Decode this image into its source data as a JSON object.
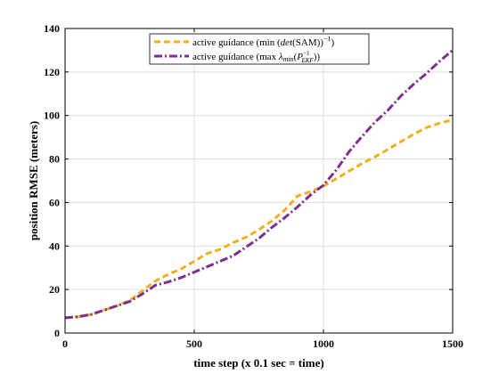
{
  "chart_data": {
    "type": "line",
    "title": "",
    "xlabel": "time step (x 0.1 sec = time)",
    "ylabel": "position RMSE (meters)",
    "xlim": [
      0,
      1500
    ],
    "ylim": [
      0,
      140
    ],
    "xticks": [
      0,
      500,
      1000,
      1500
    ],
    "yticks": [
      0,
      20,
      40,
      60,
      80,
      100,
      120,
      140
    ],
    "grid": true,
    "legend_position": "top-center",
    "series": [
      {
        "name": "active guidance (min (det(SAM))⁻¹)",
        "color": "#EDB120",
        "dash": "dashed",
        "x": [
          0,
          50,
          100,
          150,
          200,
          250,
          300,
          350,
          400,
          450,
          500,
          550,
          600,
          650,
          700,
          750,
          800,
          850,
          900,
          950,
          1000,
          1050,
          1100,
          1150,
          1200,
          1250,
          1300,
          1350,
          1400,
          1450,
          1500
        ],
        "y": [
          7,
          7.5,
          8.5,
          10.5,
          12.5,
          15,
          19.5,
          24,
          27,
          29.5,
          33,
          36.5,
          38.5,
          41.5,
          44,
          47.5,
          51.5,
          56.5,
          63,
          65,
          67.5,
          71,
          74.5,
          78,
          81,
          84.5,
          88,
          91.5,
          94.5,
          96.5,
          98
        ]
      },
      {
        "name": "active guidance (max λ_min(P_EKF⁻¹))",
        "color": "#7E2F8E",
        "dash": "dashdot",
        "x": [
          0,
          50,
          100,
          150,
          200,
          250,
          300,
          350,
          400,
          450,
          500,
          550,
          600,
          650,
          700,
          750,
          800,
          850,
          900,
          950,
          1000,
          1050,
          1100,
          1150,
          1200,
          1250,
          1300,
          1350,
          1400,
          1450,
          1500
        ],
        "y": [
          7,
          7.5,
          8.5,
          10.5,
          12.5,
          14.5,
          18,
          22,
          23.5,
          25.5,
          28,
          30.5,
          33,
          35.5,
          39.5,
          43.5,
          48.5,
          53,
          58,
          63.5,
          68,
          75,
          83.5,
          90.5,
          97,
          102.5,
          109,
          114.5,
          119.5,
          125,
          130
        ]
      }
    ]
  }
}
